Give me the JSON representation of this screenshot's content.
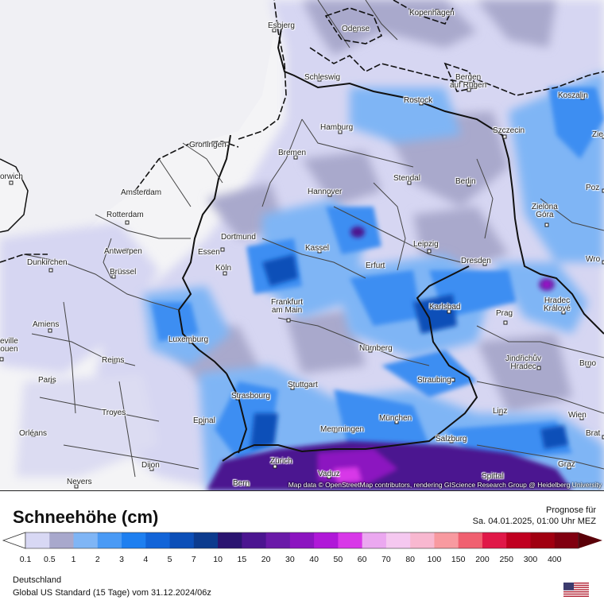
{
  "map": {
    "attribution": "Map data © OpenStreetMap contributors, rendering GIScience Research Group @ Heidelberg University",
    "cities": [
      {
        "name": "Kopenhagen"
      },
      {
        "name": "Esbjerg"
      },
      {
        "name": "Odense"
      },
      {
        "name": "Schleswig"
      },
      {
        "name": "Bergen\nauf Rügen"
      },
      {
        "name": "Koszalin"
      },
      {
        "name": "Rostock"
      },
      {
        "name": "Hamburg"
      },
      {
        "name": "Szczecin"
      },
      {
        "name": "Bremen"
      },
      {
        "name": "Groningen"
      },
      {
        "name": "orwich"
      },
      {
        "name": "Amsterdam"
      },
      {
        "name": "Hannover"
      },
      {
        "name": "Stendal"
      },
      {
        "name": "Berlin"
      },
      {
        "name": "Poz"
      },
      {
        "name": "Rotterdam"
      },
      {
        "name": "Zielona\nGóra"
      },
      {
        "name": "Dortmund"
      },
      {
        "name": "Antwerpen"
      },
      {
        "name": "Essen"
      },
      {
        "name": "Kassel"
      },
      {
        "name": "Leipzig"
      },
      {
        "name": "Dunkirchen"
      },
      {
        "name": "Brüssel"
      },
      {
        "name": "Köln"
      },
      {
        "name": "Erfurt"
      },
      {
        "name": "Dresden"
      },
      {
        "name": "Wro"
      },
      {
        "name": "Frankfurt\nam Main"
      },
      {
        "name": "Karlsbad"
      },
      {
        "name": "Hradec\nKrálové"
      },
      {
        "name": "Amiens"
      },
      {
        "name": "Prag"
      },
      {
        "name": "Luxemburg"
      },
      {
        "name": "eville\nouen"
      },
      {
        "name": "Nürnberg"
      },
      {
        "name": "Jindřichův\nHradec"
      },
      {
        "name": "Reims"
      },
      {
        "name": "Brno"
      },
      {
        "name": "Paris"
      },
      {
        "name": "Straubing"
      },
      {
        "name": "Stuttgart"
      },
      {
        "name": "Strasbourg"
      },
      {
        "name": "Troyes"
      },
      {
        "name": "Linz"
      },
      {
        "name": "Wien"
      },
      {
        "name": "Epinal"
      },
      {
        "name": "München"
      },
      {
        "name": "Memmingen"
      },
      {
        "name": "Orléans"
      },
      {
        "name": "Salzburg"
      },
      {
        "name": "Brat"
      },
      {
        "name": "Zürich"
      },
      {
        "name": "Dijon"
      },
      {
        "name": "Vaduz"
      },
      {
        "name": "Graz"
      },
      {
        "name": "Spittal"
      },
      {
        "name": "Bern"
      },
      {
        "name": "Nevers"
      },
      {
        "name": "Zie"
      }
    ]
  },
  "legend": {
    "title": "Schneehöhe (cm)",
    "forecast_label": "Prognose für",
    "forecast_date": "Sa. 04.01.2025, 01:00 Uhr MEZ",
    "ticks": [
      "0.1",
      "0.5",
      "1",
      "2",
      "3",
      "4",
      "5",
      "7",
      "10",
      "15",
      "20",
      "30",
      "40",
      "50",
      "60",
      "70",
      "80",
      "100",
      "150",
      "200",
      "250",
      "300",
      "400"
    ],
    "colors": [
      "#d8d8f4",
      "#a8a8cc",
      "#7fb5f5",
      "#4a9af5",
      "#1e7ff0",
      "#1264d8",
      "#0c4fb8",
      "#0c3b8e",
      "#2a1470",
      "#4b1590",
      "#6a1aa8",
      "#8c14c0",
      "#b018d8",
      "#d838e8",
      "#eba8f0",
      "#f5c8f0",
      "#f8b8d0",
      "#f89aa0",
      "#f06070",
      "#e01848",
      "#c00020",
      "#a00010",
      "#800010",
      "#5a0008"
    ],
    "region": "Deutschland",
    "model": "Global US Standard (15 Tage) vom  31.12.2024/06z"
  }
}
